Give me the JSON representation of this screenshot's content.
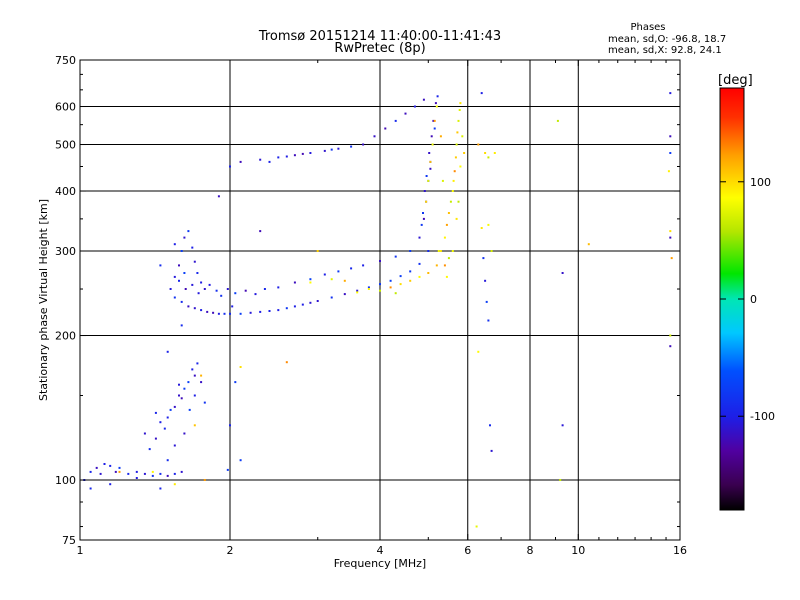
{
  "header": {
    "title_line1": "Tromsø 20151214 11:40:00-11:41:43",
    "title_line2": "RwPretec (8p)"
  },
  "phases_box": {
    "heading": "Phases",
    "line_o": "mean, sd,O: -96.8, 18.7",
    "line_x": "mean, sd,X:  92.8, 24.1"
  },
  "colorbar": {
    "unit": "[deg]",
    "tick_labels": [
      "100",
      "0",
      "-100"
    ],
    "ticks": [
      100,
      0,
      -100
    ],
    "range": [
      -180,
      180
    ]
  },
  "chart_data": {
    "type": "scatter",
    "xlabel": "Frequency [MHz]",
    "ylabel": "Stationary phase Virtual Height [km]",
    "xscale": "log",
    "yscale": "log",
    "xlim": [
      1,
      16
    ],
    "ylim": [
      75,
      750
    ],
    "x_ticks": [
      1,
      2,
      4,
      6,
      8,
      10,
      16
    ],
    "x_tick_labels": [
      "1",
      "2",
      "4",
      "6",
      "8",
      "10",
      "16"
    ],
    "x_grid": [
      2,
      4,
      6,
      8,
      10
    ],
    "y_ticks": [
      75,
      100,
      200,
      300,
      400,
      500,
      600,
      750
    ],
    "y_tick_labels": [
      "75",
      "100",
      "200",
      "300",
      "400",
      "500",
      "600",
      "750"
    ],
    "y_grid": [
      100,
      200,
      300,
      400,
      500,
      600
    ],
    "grid": true,
    "series": [
      {
        "mode": "O",
        "phase_mean": -96.8,
        "points": [
          [
            1.02,
            100
          ],
          [
            1.05,
            104
          ],
          [
            1.08,
            106
          ],
          [
            1.1,
            103
          ],
          [
            1.12,
            108
          ],
          [
            1.15,
            107
          ],
          [
            1.18,
            104
          ],
          [
            1.2,
            106
          ],
          [
            1.25,
            103
          ],
          [
            1.3,
            104
          ],
          [
            1.35,
            103
          ],
          [
            1.4,
            102
          ],
          [
            1.45,
            103
          ],
          [
            1.5,
            102
          ],
          [
            1.55,
            103
          ],
          [
            1.6,
            104
          ],
          [
            1.38,
            116
          ],
          [
            1.42,
            122
          ],
          [
            1.48,
            128
          ],
          [
            1.5,
            135
          ],
          [
            1.55,
            142
          ],
          [
            1.6,
            148
          ],
          [
            1.62,
            155
          ],
          [
            1.65,
            160
          ],
          [
            1.7,
            165
          ],
          [
            1.45,
            132
          ],
          [
            1.52,
            140
          ],
          [
            1.58,
            150
          ],
          [
            1.68,
            170
          ],
          [
            1.72,
            175
          ],
          [
            1.5,
            110
          ],
          [
            1.55,
            118
          ],
          [
            1.62,
            125
          ],
          [
            1.66,
            140
          ],
          [
            1.7,
            150
          ],
          [
            1.35,
            125
          ],
          [
            1.42,
            138
          ],
          [
            1.58,
            158
          ],
          [
            1.75,
            160
          ],
          [
            1.78,
            145
          ],
          [
            1.52,
            250
          ],
          [
            1.55,
            265
          ],
          [
            1.58,
            280
          ],
          [
            1.6,
            300
          ],
          [
            1.62,
            320
          ],
          [
            1.65,
            330
          ],
          [
            1.68,
            305
          ],
          [
            1.7,
            285
          ],
          [
            1.72,
            270
          ],
          [
            1.75,
            258
          ],
          [
            1.55,
            240
          ],
          [
            1.6,
            235
          ],
          [
            1.65,
            230
          ],
          [
            1.7,
            228
          ],
          [
            1.75,
            226
          ],
          [
            1.8,
            224
          ],
          [
            1.85,
            223
          ],
          [
            1.9,
            222
          ],
          [
            1.95,
            222
          ],
          [
            2.0,
            222
          ],
          [
            2.1,
            222
          ],
          [
            2.2,
            223
          ],
          [
            2.3,
            224
          ],
          [
            2.4,
            225
          ],
          [
            2.5,
            226
          ],
          [
            2.6,
            228
          ],
          [
            2.7,
            230
          ],
          [
            2.8,
            232
          ],
          [
            2.9,
            234
          ],
          [
            3.0,
            236
          ],
          [
            3.2,
            240
          ],
          [
            3.4,
            244
          ],
          [
            3.6,
            248
          ],
          [
            3.8,
            252
          ],
          [
            4.0,
            256
          ],
          [
            4.2,
            260
          ],
          [
            4.4,
            266
          ],
          [
            4.6,
            272
          ],
          [
            4.8,
            282
          ],
          [
            5.0,
            300
          ],
          [
            1.58,
            260
          ],
          [
            1.63,
            250
          ],
          [
            1.68,
            255
          ],
          [
            1.73,
            245
          ],
          [
            1.78,
            250
          ],
          [
            1.82,
            255
          ],
          [
            1.88,
            248
          ],
          [
            1.92,
            242
          ],
          [
            1.98,
            250
          ],
          [
            2.05,
            245
          ],
          [
            2.15,
            248
          ],
          [
            2.25,
            244
          ],
          [
            2.35,
            250
          ],
          [
            2.5,
            252
          ],
          [
            2.7,
            258
          ],
          [
            2.9,
            262
          ],
          [
            3.1,
            268
          ],
          [
            3.3,
            272
          ],
          [
            3.5,
            276
          ],
          [
            3.7,
            280
          ],
          [
            4.0,
            286
          ],
          [
            4.3,
            292
          ],
          [
            4.6,
            300
          ],
          [
            4.8,
            320
          ],
          [
            4.9,
            350
          ],
          [
            4.95,
            380
          ],
          [
            5.0,
            420
          ],
          [
            5.05,
            460
          ],
          [
            5.1,
            500
          ],
          [
            5.15,
            540
          ],
          [
            4.92,
            400
          ],
          [
            4.96,
            430
          ],
          [
            5.02,
            480
          ],
          [
            5.08,
            520
          ],
          [
            5.12,
            560
          ],
          [
            5.18,
            610
          ],
          [
            5.22,
            630
          ],
          [
            4.85,
            340
          ],
          [
            4.88,
            360
          ],
          [
            5.05,
            445
          ],
          [
            2.0,
            450
          ],
          [
            2.1,
            460
          ],
          [
            2.3,
            465
          ],
          [
            2.5,
            470
          ],
          [
            2.7,
            475
          ],
          [
            2.9,
            480
          ],
          [
            3.1,
            485
          ],
          [
            3.3,
            490
          ],
          [
            3.5,
            495
          ],
          [
            3.7,
            500
          ],
          [
            3.9,
            520
          ],
          [
            4.1,
            540
          ],
          [
            4.3,
            560
          ],
          [
            4.5,
            580
          ],
          [
            4.7,
            600
          ],
          [
            4.9,
            620
          ],
          [
            2.4,
            460
          ],
          [
            2.6,
            472
          ],
          [
            2.8,
            478
          ],
          [
            3.2,
            488
          ],
          [
            6.4,
            640
          ],
          [
            6.45,
            290
          ],
          [
            6.5,
            260
          ],
          [
            6.55,
            235
          ],
          [
            6.6,
            215
          ],
          [
            6.65,
            130
          ],
          [
            6.7,
            115
          ],
          [
            15.3,
            640
          ],
          [
            15.3,
            520
          ],
          [
            15.3,
            480
          ],
          [
            15.3,
            320
          ],
          [
            15.3,
            190
          ],
          [
            9.3,
            270
          ],
          [
            9.3,
            130
          ],
          [
            2.3,
            330
          ],
          [
            1.05,
            96
          ],
          [
            1.15,
            98
          ],
          [
            1.3,
            101
          ],
          [
            1.45,
            96
          ],
          [
            1.98,
            105
          ],
          [
            2.0,
            130
          ],
          [
            2.02,
            230
          ],
          [
            1.9,
            390
          ],
          [
            2.05,
            160
          ],
          [
            1.6,
            210
          ],
          [
            1.5,
            185
          ],
          [
            2.1,
            110
          ],
          [
            1.45,
            280
          ],
          [
            1.55,
            310
          ],
          [
            1.62,
            270
          ]
        ]
      },
      {
        "mode": "X",
        "phase_mean": 92.8,
        "points": [
          [
            1.2,
            104
          ],
          [
            1.4,
            104
          ],
          [
            1.55,
            98
          ],
          [
            1.7,
            130
          ],
          [
            1.75,
            165
          ],
          [
            1.78,
            100
          ],
          [
            2.1,
            172
          ],
          [
            2.6,
            176
          ],
          [
            3.0,
            300
          ],
          [
            3.4,
            260
          ],
          [
            3.8,
            250
          ],
          [
            4.0,
            248
          ],
          [
            4.2,
            252
          ],
          [
            4.4,
            256
          ],
          [
            4.6,
            260
          ],
          [
            4.8,
            265
          ],
          [
            5.0,
            270
          ],
          [
            5.2,
            280
          ],
          [
            5.3,
            300
          ],
          [
            5.4,
            320
          ],
          [
            5.45,
            340
          ],
          [
            5.5,
            360
          ],
          [
            5.55,
            380
          ],
          [
            5.6,
            400
          ],
          [
            5.62,
            420
          ],
          [
            5.65,
            440
          ],
          [
            5.68,
            470
          ],
          [
            5.7,
            500
          ],
          [
            5.72,
            530
          ],
          [
            5.75,
            560
          ],
          [
            5.78,
            590
          ],
          [
            5.8,
            610
          ],
          [
            5.6,
            300
          ],
          [
            5.5,
            290
          ],
          [
            5.4,
            280
          ],
          [
            5.7,
            350
          ],
          [
            5.75,
            380
          ],
          [
            5.8,
            450
          ],
          [
            5.85,
            520
          ],
          [
            5.9,
            480
          ],
          [
            5.0,
            420
          ],
          [
            5.05,
            460
          ],
          [
            5.1,
            500
          ],
          [
            5.15,
            560
          ],
          [
            4.95,
            380
          ],
          [
            5.2,
            600
          ],
          [
            5.3,
            520
          ],
          [
            5.35,
            420
          ],
          [
            5.25,
            300
          ],
          [
            5.45,
            265
          ],
          [
            6.3,
            500
          ],
          [
            6.5,
            480
          ],
          [
            6.6,
            470
          ],
          [
            6.7,
            300
          ],
          [
            6.8,
            480
          ],
          [
            6.25,
            80
          ],
          [
            6.3,
            185
          ],
          [
            6.4,
            335
          ],
          [
            6.6,
            340
          ],
          [
            9.1,
            560
          ],
          [
            9.2,
            100
          ],
          [
            10.5,
            310
          ],
          [
            15.2,
            440
          ],
          [
            15.3,
            330
          ],
          [
            15.4,
            290
          ],
          [
            15.3,
            200
          ],
          [
            2.9,
            258
          ],
          [
            3.2,
            262
          ],
          [
            3.6,
            246
          ],
          [
            4.3,
            245
          ]
        ]
      }
    ]
  }
}
